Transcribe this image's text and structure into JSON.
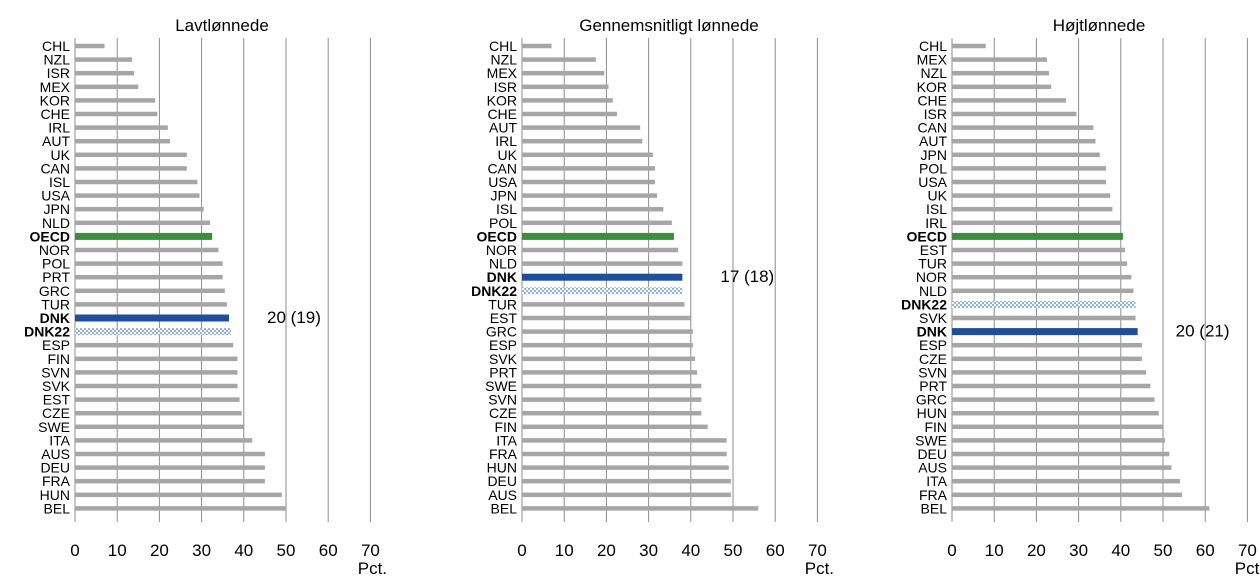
{
  "chart_data": [
    {
      "type": "bar",
      "orientation": "horizontal",
      "title": "Lavtlønnede",
      "xlabel": "Pct.",
      "xlim": [
        0,
        70
      ],
      "xticks": [
        "0",
        "10",
        "20",
        "30",
        "40",
        "50",
        "60",
        "70"
      ],
      "grid": "vertical",
      "categories": [
        "CHL",
        "NZL",
        "ISR",
        "MEX",
        "KOR",
        "CHE",
        "IRL",
        "AUT",
        "UK",
        "CAN",
        "ISL",
        "USA",
        "JPN",
        "NLD",
        "OECD",
        "NOR",
        "POL",
        "PRT",
        "GRC",
        "TUR",
        "DNK",
        "DNK22",
        "ESP",
        "FIN",
        "SVN",
        "SVK",
        "EST",
        "CZE",
        "SWE",
        "ITA",
        "AUS",
        "DEU",
        "FRA",
        "HUN",
        "BEL"
      ],
      "values": [
        7,
        13.5,
        14,
        15,
        19,
        19.5,
        22,
        22.5,
        26.5,
        26.5,
        29,
        29.5,
        30.5,
        32,
        32.5,
        34,
        35,
        35,
        35.5,
        36,
        36.5,
        37,
        37.5,
        38.5,
        38.5,
        38.5,
        39,
        39.5,
        40,
        42,
        45,
        45,
        45,
        49,
        50
      ],
      "highlight": {
        "OECD": "oecd",
        "DNK": "dnk",
        "DNK22": "dnk22"
      },
      "annotation": {
        "category": "DNK",
        "text": "20 (19)"
      }
    },
    {
      "type": "bar",
      "orientation": "horizontal",
      "title": "Gennemsnitligt lønnede",
      "xlabel": "Pct.",
      "xlim": [
        0,
        70
      ],
      "xticks": [
        "0",
        "10",
        "20",
        "30",
        "40",
        "50",
        "60",
        "70"
      ],
      "grid": "vertical",
      "categories": [
        "CHL",
        "NZL",
        "MEX",
        "ISR",
        "KOR",
        "CHE",
        "AUT",
        "IRL",
        "UK",
        "CAN",
        "USA",
        "JPN",
        "ISL",
        "POL",
        "OECD",
        "NOR",
        "NLD",
        "DNK",
        "DNK22",
        "TUR",
        "EST",
        "GRC",
        "ESP",
        "SVK",
        "PRT",
        "SWE",
        "SVN",
        "CZE",
        "FIN",
        "ITA",
        "FRA",
        "HUN",
        "DEU",
        "AUS",
        "BEL"
      ],
      "values": [
        7,
        17.5,
        19.5,
        20.5,
        21.5,
        22.5,
        28,
        28.5,
        31,
        31.5,
        31.5,
        32,
        33.5,
        35.5,
        36,
        37,
        38,
        38,
        38,
        38.5,
        40,
        40.5,
        40.5,
        41,
        41.5,
        42.5,
        42.5,
        42.5,
        44,
        48.5,
        48.5,
        49,
        49.5,
        49.5,
        56
      ],
      "highlight": {
        "OECD": "oecd",
        "DNK": "dnk",
        "DNK22": "dnk22"
      },
      "annotation": {
        "category": "DNK",
        "text": "17 (18)"
      }
    },
    {
      "type": "bar",
      "orientation": "horizontal",
      "title": "Højtlønnede",
      "xlabel": "Pct.",
      "xlim": [
        0,
        70
      ],
      "xticks": [
        "0",
        "10",
        "20",
        "30",
        "40",
        "50",
        "60",
        "70"
      ],
      "grid": "vertical",
      "categories": [
        "CHL",
        "MEX",
        "NZL",
        "KOR",
        "CHE",
        "ISR",
        "CAN",
        "AUT",
        "JPN",
        "POL",
        "USA",
        "UK",
        "ISL",
        "IRL",
        "OECD",
        "EST",
        "TUR",
        "NOR",
        "NLD",
        "DNK22",
        "SVK",
        "DNK",
        "ESP",
        "CZE",
        "SVN",
        "PRT",
        "GRC",
        "HUN",
        "FIN",
        "SWE",
        "DEU",
        "AUS",
        "ITA",
        "FRA",
        "BEL"
      ],
      "values": [
        8,
        22.5,
        23,
        23.5,
        27,
        29.5,
        33.5,
        34,
        35,
        36.5,
        36.5,
        37.5,
        38,
        40,
        40.5,
        41,
        41.5,
        42.5,
        43,
        43.5,
        43.5,
        44,
        45,
        45,
        46,
        47,
        48,
        49,
        50,
        50.5,
        51.5,
        52,
        54,
        54.5,
        61
      ],
      "highlight": {
        "OECD": "oecd",
        "DNK": "dnk",
        "DNK22": "dnk22"
      },
      "annotation": {
        "category": "DNK",
        "text": "20 (21)"
      }
    }
  ],
  "colors": {
    "bar": "#a6a6a6",
    "oecd": "#3a8f3e",
    "dnk": "#1f4e9b",
    "dnk22": "#8fb0e8",
    "grid": "#8c8c8c"
  }
}
